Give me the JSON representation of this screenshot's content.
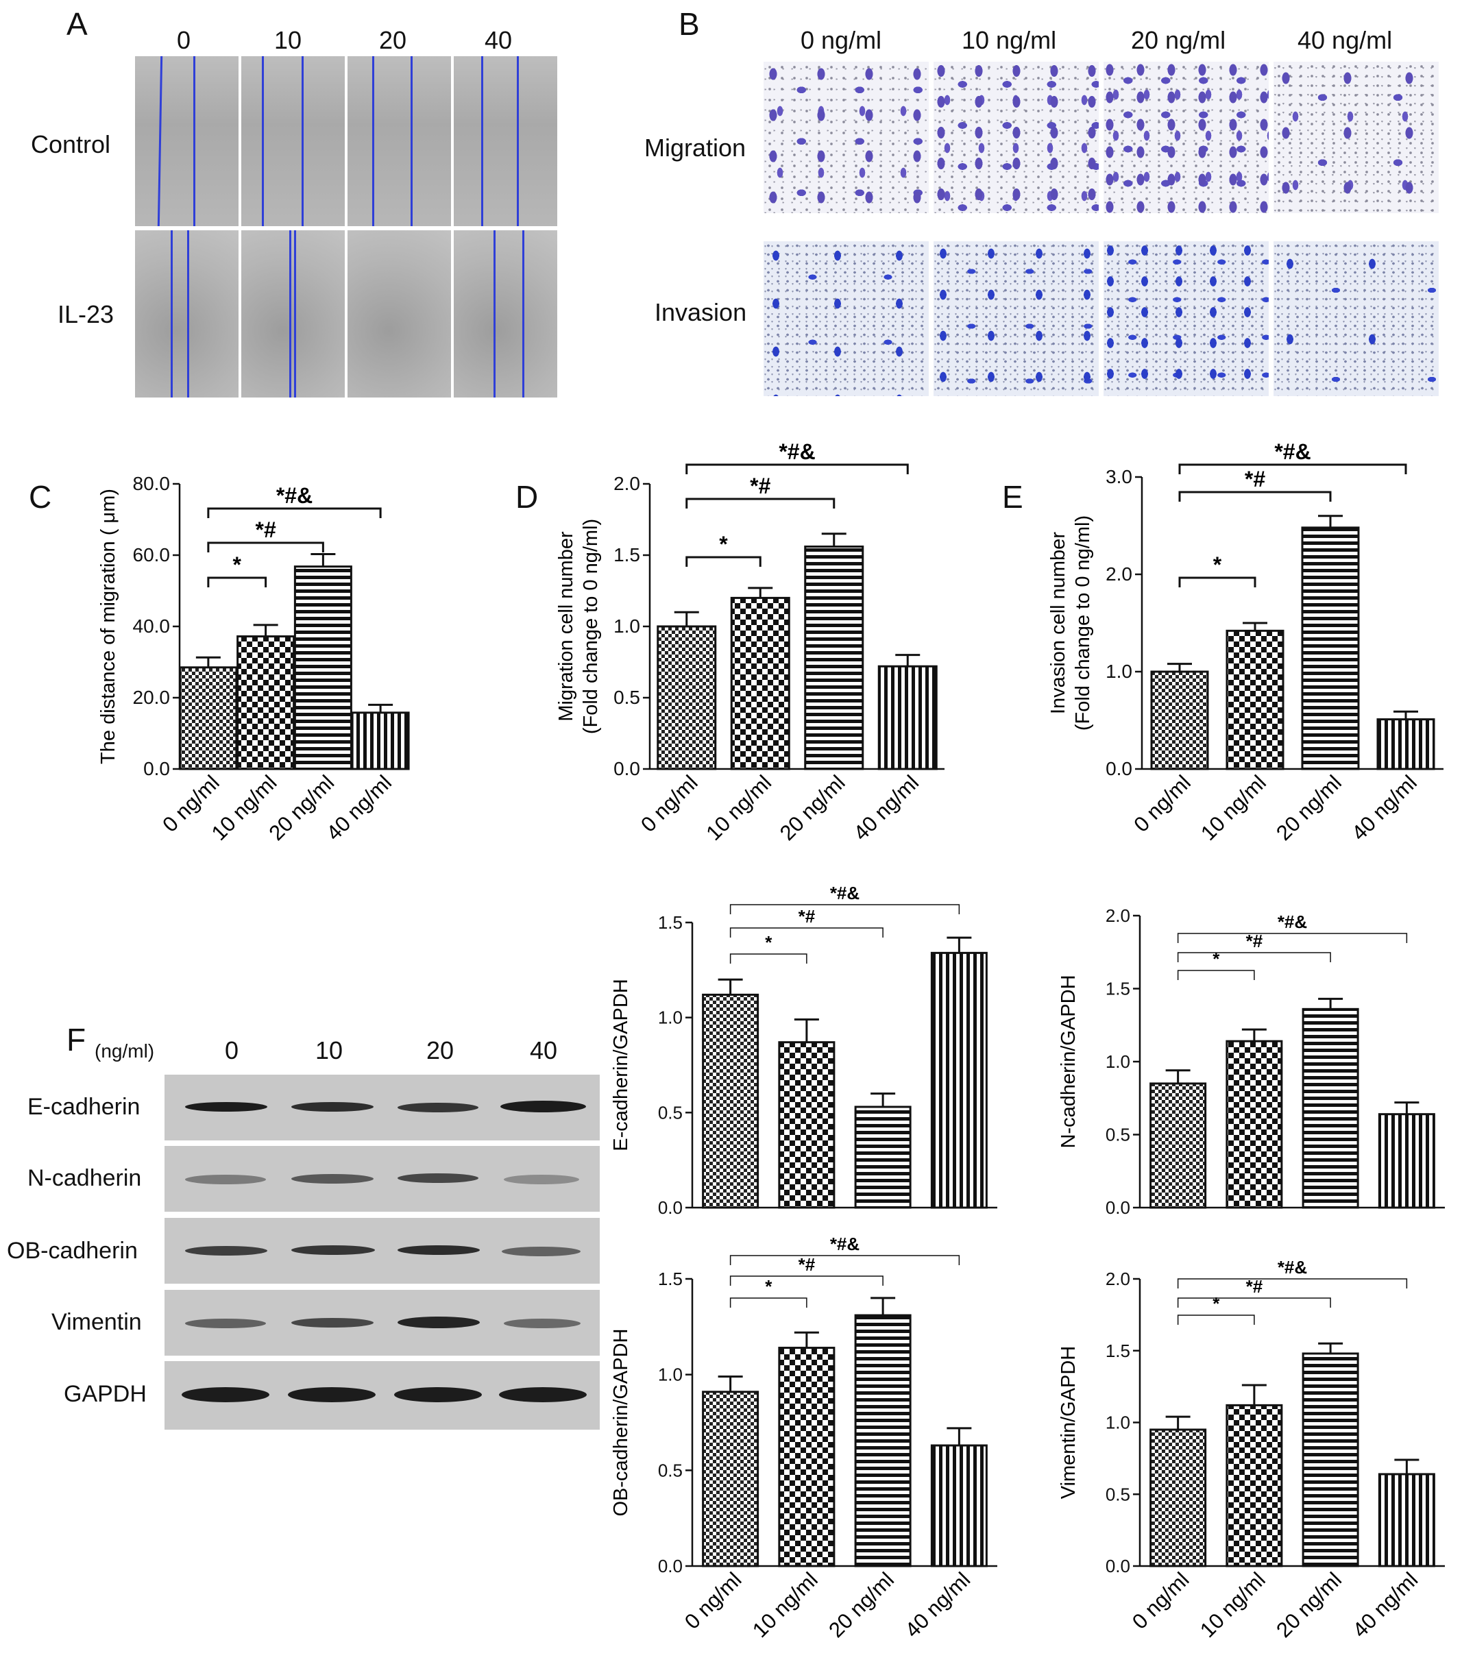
{
  "panel_letters": [
    "A",
    "B",
    "C",
    "D",
    "E",
    "F"
  ],
  "panelA": {
    "columns": [
      "0",
      "10",
      "20",
      "40"
    ],
    "rows": [
      "Control",
      "IL-23"
    ]
  },
  "panelB": {
    "columns": [
      "0 ng/ml",
      "10 ng/ml",
      "20 ng/ml",
      "40 ng/ml"
    ],
    "rows": [
      "Migration",
      "Invasion"
    ]
  },
  "panelF": {
    "unit": "(ng/ml)",
    "columns": [
      "0",
      "10",
      "20",
      "40"
    ],
    "rows": [
      "E-cadherin",
      "N-cadherin",
      "OB-cadherin",
      "Vimentin",
      "GAPDH"
    ]
  },
  "chart_data": [
    {
      "id": "C",
      "type": "bar",
      "categories": [
        "0 ng/ml",
        "10 ng/ml",
        "20 ng/ml",
        "40 ng/ml"
      ],
      "values": [
        28.5,
        37.2,
        56.8,
        15.8
      ],
      "errors": [
        2.8,
        3.2,
        3.5,
        2.2
      ],
      "ylabel": "The distance of migration ( μm)",
      "ylim": [
        0,
        80
      ],
      "yticks": [
        "0.0",
        "20.0",
        "40.0",
        "60.0",
        "80.0"
      ],
      "significance": [
        {
          "to": 1,
          "label": "*"
        },
        {
          "to": 2,
          "label": "*#"
        },
        {
          "to": 3,
          "label": "*#&"
        }
      ]
    },
    {
      "id": "D",
      "type": "bar",
      "categories": [
        "0 ng/ml",
        "10 ng/ml",
        "20 ng/ml",
        "40 ng/ml"
      ],
      "values": [
        1.0,
        1.2,
        1.56,
        0.72
      ],
      "errors": [
        0.1,
        0.07,
        0.09,
        0.08
      ],
      "ylabel": "Migration cell number",
      "ylabel2": "(Fold change to 0 ng/ml)",
      "ylim": [
        0,
        2.0
      ],
      "yticks": [
        "0.0",
        "0.5",
        "1.0",
        "1.5",
        "2.0"
      ],
      "significance": [
        {
          "to": 1,
          "label": "*"
        },
        {
          "to": 2,
          "label": "*#"
        },
        {
          "to": 3,
          "label": "*#&"
        }
      ]
    },
    {
      "id": "E",
      "type": "bar",
      "categories": [
        "0 ng/ml",
        "10 ng/ml",
        "20 ng/ml",
        "40 ng/ml"
      ],
      "values": [
        1.0,
        1.42,
        2.48,
        0.51
      ],
      "errors": [
        0.08,
        0.08,
        0.12,
        0.08
      ],
      "ylabel": "Invasion cell number",
      "ylabel2": "(Fold change to 0 ng/ml)",
      "ylim": [
        0,
        3.0
      ],
      "yticks": [
        "0.0",
        "1.0",
        "2.0",
        "3.0"
      ],
      "significance": [
        {
          "to": 1,
          "label": "*"
        },
        {
          "to": 2,
          "label": "*#"
        },
        {
          "to": 3,
          "label": "*#&"
        }
      ]
    },
    {
      "id": "Fe",
      "type": "bar",
      "categories": [
        "0 ng/ml",
        "10 ng/ml",
        "20 ng/ml",
        "40 ng/ml"
      ],
      "values": [
        1.12,
        0.87,
        0.53,
        1.34
      ],
      "errors": [
        0.08,
        0.12,
        0.07,
        0.08
      ],
      "ylabel": "E-cadherin/GAPDH",
      "ylim": [
        0,
        1.5
      ],
      "yticks": [
        "0.0",
        "0.5",
        "1.0",
        "1.5"
      ],
      "significance": [
        {
          "to": 1,
          "label": "*"
        },
        {
          "to": 2,
          "label": "*#"
        },
        {
          "to": 3,
          "label": "*#&"
        }
      ]
    },
    {
      "id": "Fn",
      "type": "bar",
      "categories": [
        "0 ng/ml",
        "10 ng/ml",
        "20 ng/ml",
        "40 ng/ml"
      ],
      "values": [
        0.85,
        1.14,
        1.36,
        0.64
      ],
      "errors": [
        0.09,
        0.08,
        0.07,
        0.08
      ],
      "ylabel": "N-cadherin/GAPDH",
      "ylim": [
        0,
        2.0
      ],
      "yticks": [
        "0.0",
        "0.5",
        "1.0",
        "1.5",
        "2.0"
      ],
      "significance": [
        {
          "to": 1,
          "label": "*"
        },
        {
          "to": 2,
          "label": "*#"
        },
        {
          "to": 3,
          "label": "*#&"
        }
      ]
    },
    {
      "id": "Fob",
      "type": "bar",
      "categories": [
        "0 ng/ml",
        "10 ng/ml",
        "20 ng/ml",
        "40 ng/ml"
      ],
      "values": [
        0.91,
        1.14,
        1.31,
        0.63
      ],
      "errors": [
        0.08,
        0.08,
        0.09,
        0.09
      ],
      "ylabel": "OB-cadherin/GAPDH",
      "ylim": [
        0,
        1.5
      ],
      "yticks": [
        "0.0",
        "0.5",
        "1.0",
        "1.5"
      ],
      "significance": [
        {
          "to": 1,
          "label": "*"
        },
        {
          "to": 2,
          "label": "*#"
        },
        {
          "to": 3,
          "label": "*#&"
        }
      ]
    },
    {
      "id": "Fv",
      "type": "bar",
      "categories": [
        "0 ng/ml",
        "10 ng/ml",
        "20 ng/ml",
        "40 ng/ml"
      ],
      "values": [
        0.95,
        1.12,
        1.48,
        0.64
      ],
      "errors": [
        0.09,
        0.14,
        0.07,
        0.1
      ],
      "ylabel": "Vimentin/GAPDH",
      "ylim": [
        0,
        2.0
      ],
      "yticks": [
        "0.0",
        "0.5",
        "1.0",
        "1.5",
        "2.0"
      ],
      "significance": [
        {
          "to": 1,
          "label": "*"
        },
        {
          "to": 2,
          "label": "*#"
        },
        {
          "to": 3,
          "label": "*#&"
        }
      ]
    }
  ]
}
